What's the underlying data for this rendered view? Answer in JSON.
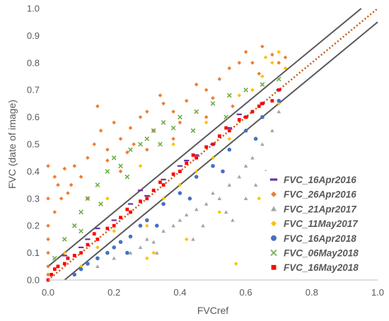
{
  "chart_data": {
    "type": "scatter",
    "xlabel": "FVCref",
    "ylabel": "FVC (date of image)",
    "xlim": [
      0,
      1
    ],
    "ylim": [
      0,
      1
    ],
    "x_ticks": [
      "0.0",
      "0.2",
      "0.4",
      "0.6",
      "0.8",
      "1.0"
    ],
    "y_ticks": [
      "0.0",
      "0.1",
      "0.2",
      "0.3",
      "0.4",
      "0.5",
      "0.6",
      "0.7",
      "0.8",
      "0.9",
      "1.0"
    ],
    "grid": false,
    "legend_position": "bottom-right",
    "reference_lines": [
      {
        "kind": "1:1 line",
        "style": "dotted",
        "color": "#c55a11",
        "from": [
          0,
          0
        ],
        "to": [
          1,
          1
        ]
      },
      {
        "kind": "upper bound",
        "style": "solid",
        "color": "#595959",
        "from": [
          0,
          0.05
        ],
        "to": [
          0.95,
          1.0
        ]
      },
      {
        "kind": "lower bound",
        "style": "solid",
        "color": "#595959",
        "from": [
          0.05,
          0
        ],
        "to": [
          1.0,
          0.95
        ]
      }
    ],
    "series": [
      {
        "name": "FVC_16Apr2016",
        "marker": "dash",
        "color": "#7030a0",
        "x": [
          0.05,
          0.1,
          0.15,
          0.2,
          0.25,
          0.3,
          0.35,
          0.4,
          0.45,
          0.5,
          0.55,
          0.6,
          0.65,
          0.7,
          0.12,
          0.28,
          0.42,
          0.58
        ],
        "y": [
          0.09,
          0.12,
          0.19,
          0.22,
          0.28,
          0.31,
          0.37,
          0.42,
          0.46,
          0.5,
          0.56,
          0.6,
          0.65,
          0.7,
          0.15,
          0.33,
          0.44,
          0.61
        ]
      },
      {
        "name": "FVC_26Apr2016",
        "marker": "diamond",
        "color": "#ed7d31",
        "x": [
          0.0,
          0.0,
          0.0,
          0.0,
          0.0,
          0.0,
          0.0,
          0.02,
          0.02,
          0.03,
          0.04,
          0.05,
          0.06,
          0.08,
          0.1,
          0.12,
          0.14,
          0.15,
          0.16,
          0.18,
          0.2,
          0.22,
          0.24,
          0.25,
          0.28,
          0.3,
          0.32,
          0.34,
          0.35,
          0.38,
          0.4,
          0.42,
          0.45,
          0.48,
          0.5,
          0.52,
          0.55,
          0.58,
          0.6,
          0.62,
          0.65,
          0.68,
          0.7,
          0.72,
          0.12,
          0.22,
          0.3,
          0.38,
          0.48,
          0.56,
          0.64,
          0.07,
          0.18,
          0.26
        ],
        "y": [
          0.02,
          0.05,
          0.1,
          0.15,
          0.2,
          0.3,
          0.42,
          0.25,
          0.38,
          0.35,
          0.3,
          0.41,
          0.32,
          0.42,
          0.38,
          0.45,
          0.5,
          0.64,
          0.55,
          0.48,
          0.58,
          0.52,
          0.47,
          0.56,
          0.6,
          0.62,
          0.55,
          0.68,
          0.65,
          0.62,
          0.58,
          0.66,
          0.72,
          0.7,
          0.67,
          0.74,
          0.78,
          0.8,
          0.84,
          0.8,
          0.86,
          0.83,
          0.8,
          0.82,
          0.3,
          0.4,
          0.48,
          0.52,
          0.6,
          0.64,
          0.76,
          0.35,
          0.44,
          0.5
        ]
      },
      {
        "name": "FVC_21Apr2017",
        "marker": "triangle",
        "color": "#a5a5a5",
        "x": [
          0.15,
          0.2,
          0.25,
          0.28,
          0.3,
          0.32,
          0.35,
          0.38,
          0.4,
          0.42,
          0.45,
          0.48,
          0.5,
          0.52,
          0.55,
          0.58,
          0.6,
          0.62,
          0.65,
          0.68,
          0.7,
          0.33,
          0.47,
          0.54,
          0.6,
          0.66,
          0.44,
          0.56,
          0.63
        ],
        "y": [
          0.05,
          0.08,
          0.1,
          0.12,
          0.15,
          0.14,
          0.18,
          0.2,
          0.22,
          0.24,
          0.26,
          0.28,
          0.32,
          0.3,
          0.35,
          0.38,
          0.42,
          0.45,
          0.5,
          0.55,
          0.62,
          0.1,
          0.2,
          0.25,
          0.3,
          0.4,
          0.15,
          0.22,
          0.35
        ]
      },
      {
        "name": "FVC_11May2017",
        "marker": "diamond",
        "color": "#ffc000",
        "x": [
          0.05,
          0.1,
          0.15,
          0.2,
          0.25,
          0.3,
          0.32,
          0.35,
          0.4,
          0.45,
          0.5,
          0.55,
          0.6,
          0.62,
          0.65,
          0.68,
          0.7,
          0.72,
          0.18,
          0.28,
          0.38,
          0.48,
          0.58,
          0.66,
          0.3,
          0.42,
          0.52,
          0.57,
          0.64,
          0.7
        ],
        "y": [
          0.1,
          0.05,
          0.12,
          0.18,
          0.25,
          0.2,
          0.1,
          0.3,
          0.35,
          0.4,
          0.45,
          0.52,
          0.6,
          0.7,
          0.75,
          0.8,
          0.84,
          0.78,
          0.3,
          0.42,
          0.5,
          0.58,
          0.68,
          0.82,
          0.08,
          0.15,
          0.25,
          0.06,
          0.3,
          0.65
        ]
      },
      {
        "name": "FVC_16Apr2018",
        "marker": "circle",
        "color": "#4472c4",
        "x": [
          0.08,
          0.1,
          0.12,
          0.15,
          0.18,
          0.2,
          0.22,
          0.25,
          0.28,
          0.3,
          0.35,
          0.4,
          0.45,
          0.5,
          0.55,
          0.6,
          0.65,
          0.7,
          0.24,
          0.33,
          0.43,
          0.53,
          0.63
        ],
        "y": [
          0.02,
          0.04,
          0.06,
          0.08,
          0.1,
          0.12,
          0.14,
          0.16,
          0.2,
          0.22,
          0.28,
          0.32,
          0.38,
          0.42,
          0.48,
          0.55,
          0.6,
          0.66,
          0.1,
          0.2,
          0.3,
          0.4,
          0.52
        ]
      },
      {
        "name": "FVC_06May2018",
        "marker": "cross",
        "color": "#70ad47",
        "x": [
          0.02,
          0.05,
          0.08,
          0.1,
          0.12,
          0.15,
          0.18,
          0.2,
          0.22,
          0.25,
          0.28,
          0.3,
          0.32,
          0.35,
          0.38,
          0.4,
          0.45,
          0.5,
          0.55,
          0.6,
          0.65,
          0.7,
          0.1,
          0.16,
          0.24,
          0.34,
          0.44,
          0.54
        ],
        "y": [
          0.08,
          0.15,
          0.2,
          0.25,
          0.3,
          0.35,
          0.4,
          0.45,
          0.42,
          0.48,
          0.5,
          0.52,
          0.55,
          0.58,
          0.56,
          0.6,
          0.62,
          0.65,
          0.68,
          0.7,
          0.72,
          0.74,
          0.18,
          0.28,
          0.38,
          0.5,
          0.55,
          0.6
        ]
      },
      {
        "name": "FVC_16May2018",
        "marker": "square",
        "color": "#ff0000",
        "x": [
          0.0,
          0.01,
          0.02,
          0.03,
          0.05,
          0.08,
          0.1,
          0.12,
          0.15,
          0.18,
          0.2,
          0.22,
          0.25,
          0.28,
          0.3,
          0.32,
          0.35,
          0.38,
          0.4,
          0.42,
          0.45,
          0.48,
          0.5,
          0.52,
          0.55,
          0.58,
          0.6,
          0.62,
          0.65,
          0.68,
          0.7,
          0.06,
          0.14,
          0.24,
          0.34,
          0.44,
          0.54,
          0.64
        ],
        "y": [
          0.0,
          0.02,
          0.04,
          0.05,
          0.06,
          0.09,
          0.1,
          0.13,
          0.15,
          0.19,
          0.2,
          0.23,
          0.25,
          0.29,
          0.3,
          0.33,
          0.35,
          0.39,
          0.4,
          0.43,
          0.45,
          0.49,
          0.5,
          0.53,
          0.55,
          0.59,
          0.6,
          0.62,
          0.65,
          0.66,
          0.7,
          0.08,
          0.17,
          0.26,
          0.36,
          0.46,
          0.56,
          0.64
        ]
      }
    ]
  }
}
